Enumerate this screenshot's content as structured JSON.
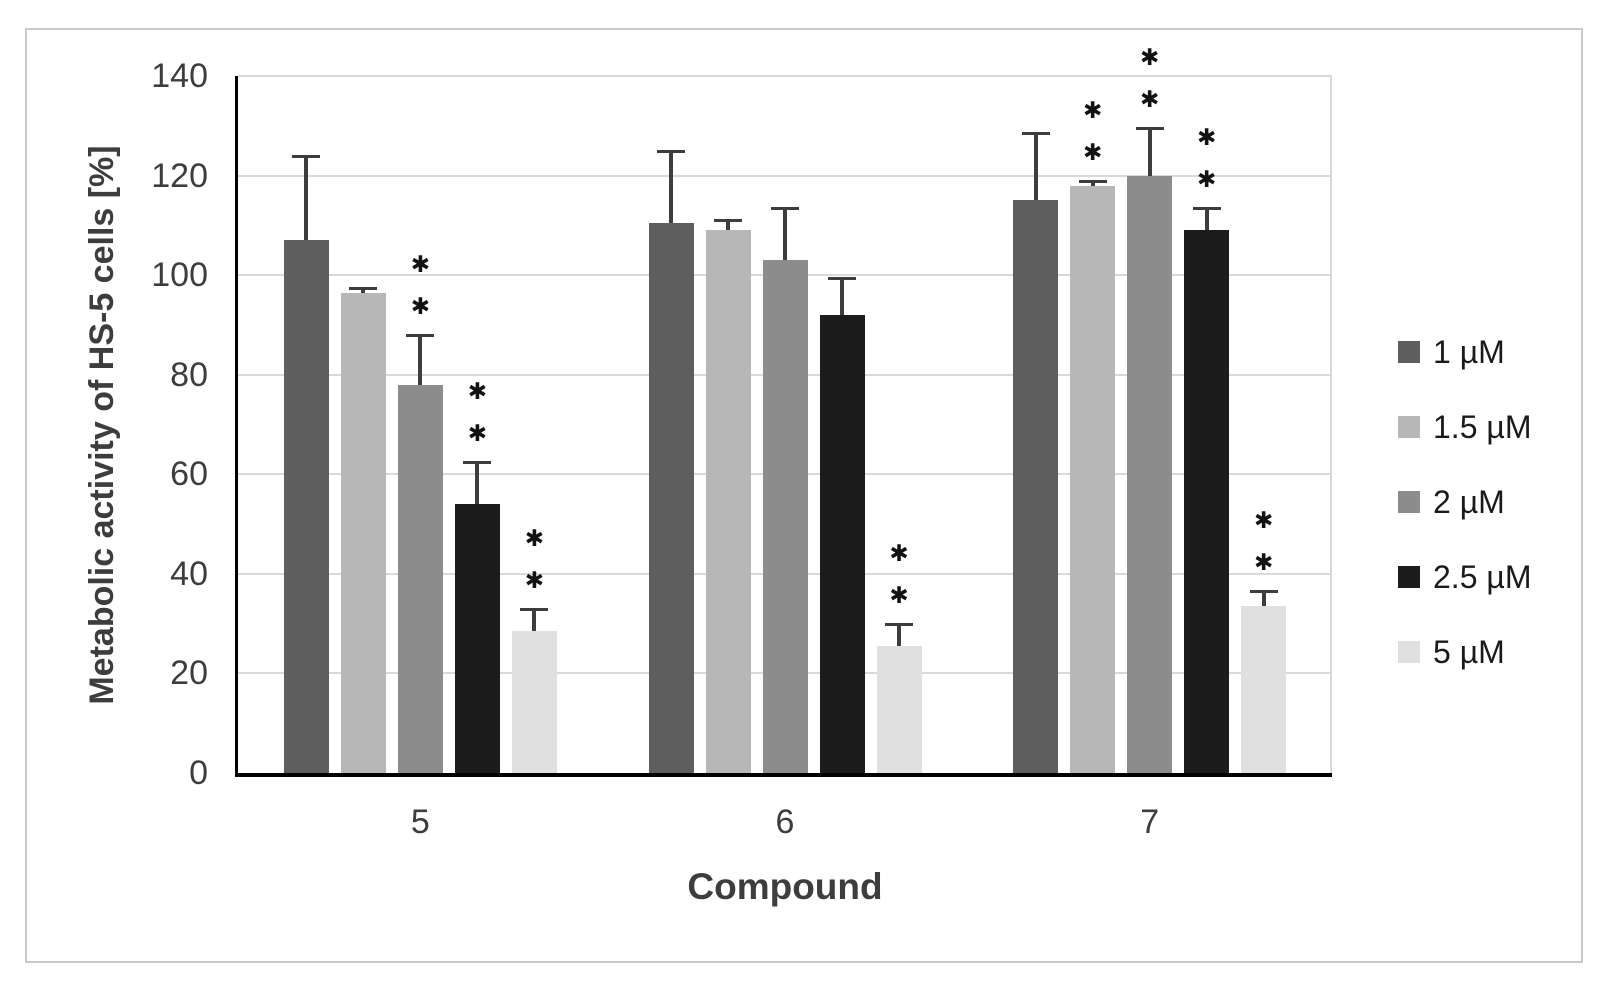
{
  "chart_data": {
    "type": "bar",
    "xlabel": "Compound",
    "ylabel": "Metabolic activity of HS-5 cells [%]",
    "categories": [
      "5",
      "6",
      "7"
    ],
    "series": [
      {
        "name": "1 µM",
        "color": "#5e5e5e",
        "values": [
          107,
          110.5,
          115
        ],
        "errors_up": [
          17,
          14.5,
          13.5
        ],
        "significance": [
          0,
          0,
          0
        ]
      },
      {
        "name": "1.5 µM",
        "color": "#b7b7b7",
        "values": [
          96.5,
          109,
          118
        ],
        "errors_up": [
          1,
          2,
          1
        ],
        "significance": [
          0,
          0,
          2
        ]
      },
      {
        "name": "2 µM",
        "color": "#8c8c8c",
        "values": [
          78,
          103,
          120
        ],
        "errors_up": [
          10,
          10.5,
          9.5
        ],
        "significance": [
          2,
          0,
          2
        ]
      },
      {
        "name": "2.5 µM",
        "color": "#1c1c1c",
        "values": [
          54,
          92,
          109
        ],
        "errors_up": [
          8.5,
          7.5,
          4.5
        ],
        "significance": [
          2,
          0,
          2
        ]
      },
      {
        "name": "5 µM",
        "color": "#e0e0e0",
        "values": [
          28.5,
          25.5,
          33.5
        ],
        "errors_up": [
          4.5,
          4.5,
          3
        ],
        "significance": [
          2,
          2,
          2
        ]
      }
    ],
    "ylim": [
      0,
      140
    ],
    "yticks": [
      0,
      20,
      40,
      60,
      80,
      100,
      120,
      140
    ],
    "grid": "horizontal",
    "gridline_color": "#d9d9d9",
    "axis_color": "#000000",
    "error_bar_color": "#3d3d3d",
    "significance_marker": "✱",
    "legend_position": "right"
  }
}
